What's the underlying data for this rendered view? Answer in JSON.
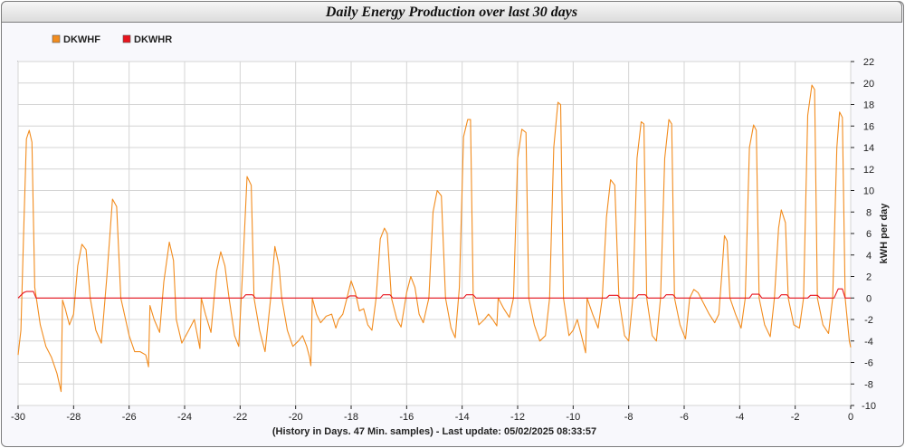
{
  "chart_data": {
    "type": "line",
    "title": "Daily Energy Production over last 30 days",
    "xlabel": "(History in Days. 47 Min. samples) - Last update: 05/02/2025 08:33:57",
    "ylabel": "kWH per day",
    "xlim": [
      -30,
      0
    ],
    "ylim": [
      -10,
      22
    ],
    "xticks": [
      -30,
      -28,
      -26,
      -24,
      -22,
      -20,
      -18,
      -16,
      -14,
      -12,
      -10,
      -8,
      -6,
      -4,
      -2,
      0
    ],
    "yticks": [
      -10,
      -8,
      -6,
      -4,
      -2,
      0,
      2,
      4,
      6,
      8,
      10,
      12,
      14,
      16,
      18,
      20,
      22
    ],
    "grid": true,
    "legend_position": "top-left",
    "series": [
      {
        "name": "DKWHF",
        "color": "#f28c1e",
        "points": [
          [
            -30.0,
            -5.3
          ],
          [
            -29.9,
            -3.0
          ],
          [
            -29.8,
            6.0
          ],
          [
            -29.7,
            14.8
          ],
          [
            -29.6,
            15.6
          ],
          [
            -29.5,
            14.5
          ],
          [
            -29.4,
            1.0
          ],
          [
            -29.2,
            -2.5
          ],
          [
            -29.0,
            -4.5
          ],
          [
            -28.8,
            -5.5
          ],
          [
            -28.6,
            -7.0
          ],
          [
            -28.45,
            -8.7
          ],
          [
            -28.4,
            -0.2
          ],
          [
            -28.3,
            -1.0
          ],
          [
            -28.15,
            -2.5
          ],
          [
            -28.0,
            -1.5
          ],
          [
            -27.85,
            3.0
          ],
          [
            -27.7,
            5.0
          ],
          [
            -27.55,
            4.5
          ],
          [
            -27.4,
            0.0
          ],
          [
            -27.2,
            -3.0
          ],
          [
            -27.0,
            -4.2
          ],
          [
            -26.8,
            2.0
          ],
          [
            -26.6,
            9.2
          ],
          [
            -26.45,
            8.5
          ],
          [
            -26.3,
            0.0
          ],
          [
            -26.0,
            -3.5
          ],
          [
            -25.8,
            -5.0
          ],
          [
            -25.6,
            -5.0
          ],
          [
            -25.4,
            -5.3
          ],
          [
            -25.3,
            -6.4
          ],
          [
            -25.25,
            -0.7
          ],
          [
            -25.1,
            -2.0
          ],
          [
            -24.9,
            -3.2
          ],
          [
            -24.75,
            1.5
          ],
          [
            -24.55,
            5.2
          ],
          [
            -24.4,
            3.5
          ],
          [
            -24.3,
            -2.0
          ],
          [
            -24.1,
            -4.2
          ],
          [
            -23.85,
            -3.0
          ],
          [
            -23.65,
            -2.0
          ],
          [
            -23.5,
            -4.0
          ],
          [
            -23.45,
            -4.7
          ],
          [
            -23.4,
            0.0
          ],
          [
            -23.25,
            -1.5
          ],
          [
            -23.05,
            -3.2
          ],
          [
            -22.85,
            2.5
          ],
          [
            -22.7,
            4.3
          ],
          [
            -22.55,
            3.0
          ],
          [
            -22.4,
            0.0
          ],
          [
            -22.2,
            -3.5
          ],
          [
            -22.05,
            -4.5
          ],
          [
            -21.9,
            3.0
          ],
          [
            -21.75,
            11.3
          ],
          [
            -21.6,
            10.5
          ],
          [
            -21.5,
            0.0
          ],
          [
            -21.3,
            -3.0
          ],
          [
            -21.1,
            -5.0
          ],
          [
            -20.9,
            0.0
          ],
          [
            -20.75,
            4.8
          ],
          [
            -20.6,
            3.0
          ],
          [
            -20.5,
            0.0
          ],
          [
            -20.3,
            -3.0
          ],
          [
            -20.1,
            -4.5
          ],
          [
            -19.9,
            -4.0
          ],
          [
            -19.75,
            -3.5
          ],
          [
            -19.6,
            -4.5
          ],
          [
            -19.5,
            -5.5
          ],
          [
            -19.45,
            -6.3
          ],
          [
            -19.4,
            0.0
          ],
          [
            -19.25,
            -1.5
          ],
          [
            -19.1,
            -2.3
          ],
          [
            -18.9,
            -1.7
          ],
          [
            -18.7,
            -1.5
          ],
          [
            -18.55,
            -2.8
          ],
          [
            -18.45,
            -2.0
          ],
          [
            -18.3,
            -1.5
          ],
          [
            -18.15,
            0.0
          ],
          [
            -18.0,
            1.6
          ],
          [
            -17.85,
            0.5
          ],
          [
            -17.7,
            -1.2
          ],
          [
            -17.55,
            -1.0
          ],
          [
            -17.4,
            -2.5
          ],
          [
            -17.25,
            -3.0
          ],
          [
            -17.1,
            0.0
          ],
          [
            -16.95,
            5.5
          ],
          [
            -16.8,
            6.5
          ],
          [
            -16.7,
            6.0
          ],
          [
            -16.55,
            0.0
          ],
          [
            -16.35,
            -2.0
          ],
          [
            -16.2,
            -2.7
          ],
          [
            -16.0,
            0.5
          ],
          [
            -15.85,
            2.0
          ],
          [
            -15.7,
            1.0
          ],
          [
            -15.55,
            -1.5
          ],
          [
            -15.4,
            -2.3
          ],
          [
            -15.2,
            0.0
          ],
          [
            -15.05,
            8.0
          ],
          [
            -14.9,
            10.0
          ],
          [
            -14.75,
            9.5
          ],
          [
            -14.6,
            0.0
          ],
          [
            -14.4,
            -2.8
          ],
          [
            -14.25,
            -3.7
          ],
          [
            -14.1,
            1.0
          ],
          [
            -13.95,
            15.0
          ],
          [
            -13.8,
            16.6
          ],
          [
            -13.7,
            16.6
          ],
          [
            -13.6,
            0.0
          ],
          [
            -13.4,
            -2.5
          ],
          [
            -13.2,
            -2.0
          ],
          [
            -13.05,
            -1.5
          ],
          [
            -12.9,
            -2.0
          ],
          [
            -12.75,
            -2.6
          ],
          [
            -12.7,
            0.0
          ],
          [
            -12.5,
            -1.0
          ],
          [
            -12.3,
            -1.8
          ],
          [
            -12.15,
            0.0
          ],
          [
            -12.0,
            13.0
          ],
          [
            -11.85,
            15.7
          ],
          [
            -11.7,
            15.4
          ],
          [
            -11.6,
            0.0
          ],
          [
            -11.4,
            -2.5
          ],
          [
            -11.2,
            -4.0
          ],
          [
            -11.0,
            -3.5
          ],
          [
            -10.85,
            0.0
          ],
          [
            -10.7,
            14.0
          ],
          [
            -10.55,
            18.2
          ],
          [
            -10.45,
            18.0
          ],
          [
            -10.35,
            0.0
          ],
          [
            -10.15,
            -3.5
          ],
          [
            -10.0,
            -3.0
          ],
          [
            -9.85,
            -2.0
          ],
          [
            -9.7,
            -3.5
          ],
          [
            -9.55,
            -5.1
          ],
          [
            -9.5,
            0.0
          ],
          [
            -9.3,
            -1.5
          ],
          [
            -9.1,
            -2.8
          ],
          [
            -8.95,
            0.0
          ],
          [
            -8.8,
            7.5
          ],
          [
            -8.65,
            11.0
          ],
          [
            -8.5,
            10.5
          ],
          [
            -8.35,
            0.0
          ],
          [
            -8.15,
            -3.5
          ],
          [
            -8.0,
            -4.0
          ],
          [
            -7.85,
            0.0
          ],
          [
            -7.7,
            13.0
          ],
          [
            -7.55,
            16.4
          ],
          [
            -7.45,
            16.2
          ],
          [
            -7.35,
            0.0
          ],
          [
            -7.15,
            -3.5
          ],
          [
            -7.0,
            -4.0
          ],
          [
            -6.85,
            0.0
          ],
          [
            -6.7,
            13.0
          ],
          [
            -6.55,
            16.6
          ],
          [
            -6.45,
            16.2
          ],
          [
            -6.35,
            0.0
          ],
          [
            -6.15,
            -2.5
          ],
          [
            -5.95,
            -3.8
          ],
          [
            -5.8,
            0.0
          ],
          [
            -5.65,
            0.8
          ],
          [
            -5.5,
            0.5
          ],
          [
            -5.3,
            -0.5
          ],
          [
            -5.1,
            -1.5
          ],
          [
            -4.9,
            -2.3
          ],
          [
            -4.75,
            -1.5
          ],
          [
            -4.65,
            2.0
          ],
          [
            -4.55,
            5.8
          ],
          [
            -4.45,
            5.3
          ],
          [
            -4.35,
            0.0
          ],
          [
            -4.15,
            -1.5
          ],
          [
            -3.95,
            -2.8
          ],
          [
            -3.8,
            0.0
          ],
          [
            -3.65,
            14.0
          ],
          [
            -3.5,
            16.1
          ],
          [
            -3.4,
            15.6
          ],
          [
            -3.3,
            0.0
          ],
          [
            -3.1,
            -2.5
          ],
          [
            -2.9,
            -3.6
          ],
          [
            -2.75,
            0.0
          ],
          [
            -2.6,
            6.5
          ],
          [
            -2.5,
            8.2
          ],
          [
            -2.35,
            7.0
          ],
          [
            -2.25,
            0.0
          ],
          [
            -2.05,
            -2.5
          ],
          [
            -1.85,
            -2.8
          ],
          [
            -1.7,
            0.0
          ],
          [
            -1.55,
            17.0
          ],
          [
            -1.4,
            19.8
          ],
          [
            -1.3,
            19.4
          ],
          [
            -1.2,
            0.0
          ],
          [
            -1.0,
            -2.5
          ],
          [
            -0.8,
            -3.3
          ],
          [
            -0.65,
            0.0
          ],
          [
            -0.5,
            14.0
          ],
          [
            -0.4,
            17.3
          ],
          [
            -0.3,
            16.8
          ],
          [
            -0.2,
            0.0
          ],
          [
            -0.05,
            -4.0
          ],
          [
            0.0,
            -4.6
          ]
        ]
      },
      {
        "name": "DKWHR",
        "color": "#e8141e",
        "points": [
          [
            -30.0,
            0.0
          ],
          [
            -29.8,
            0.5
          ],
          [
            -29.7,
            0.6
          ],
          [
            -29.45,
            0.6
          ],
          [
            -29.35,
            0.0
          ],
          [
            -21.9,
            0.0
          ],
          [
            -21.8,
            0.3
          ],
          [
            -21.55,
            0.3
          ],
          [
            -21.45,
            0.0
          ],
          [
            -18.15,
            0.0
          ],
          [
            -18.05,
            0.2
          ],
          [
            -17.85,
            0.2
          ],
          [
            -17.75,
            0.0
          ],
          [
            -16.95,
            0.0
          ],
          [
            -16.85,
            0.3
          ],
          [
            -16.6,
            0.3
          ],
          [
            -16.5,
            0.0
          ],
          [
            -13.95,
            0.0
          ],
          [
            -13.85,
            0.3
          ],
          [
            -13.6,
            0.3
          ],
          [
            -13.5,
            0.0
          ],
          [
            -8.8,
            0.0
          ],
          [
            -8.7,
            0.25
          ],
          [
            -8.4,
            0.25
          ],
          [
            -8.3,
            0.0
          ],
          [
            -7.75,
            0.0
          ],
          [
            -7.65,
            0.3
          ],
          [
            -7.4,
            0.3
          ],
          [
            -7.3,
            0.0
          ],
          [
            -6.75,
            0.0
          ],
          [
            -6.65,
            0.3
          ],
          [
            -6.4,
            0.3
          ],
          [
            -6.3,
            0.0
          ],
          [
            -3.65,
            0.0
          ],
          [
            -3.55,
            0.35
          ],
          [
            -3.3,
            0.35
          ],
          [
            -3.2,
            0.0
          ],
          [
            -2.6,
            0.0
          ],
          [
            -2.5,
            0.3
          ],
          [
            -2.3,
            0.3
          ],
          [
            -2.2,
            0.0
          ],
          [
            -1.55,
            0.0
          ],
          [
            -1.45,
            0.25
          ],
          [
            -1.2,
            0.25
          ],
          [
            -1.1,
            0.0
          ],
          [
            -0.6,
            0.0
          ],
          [
            -0.45,
            0.85
          ],
          [
            -0.3,
            0.85
          ],
          [
            -0.2,
            0.0
          ],
          [
            0.0,
            0.0
          ]
        ]
      }
    ]
  }
}
